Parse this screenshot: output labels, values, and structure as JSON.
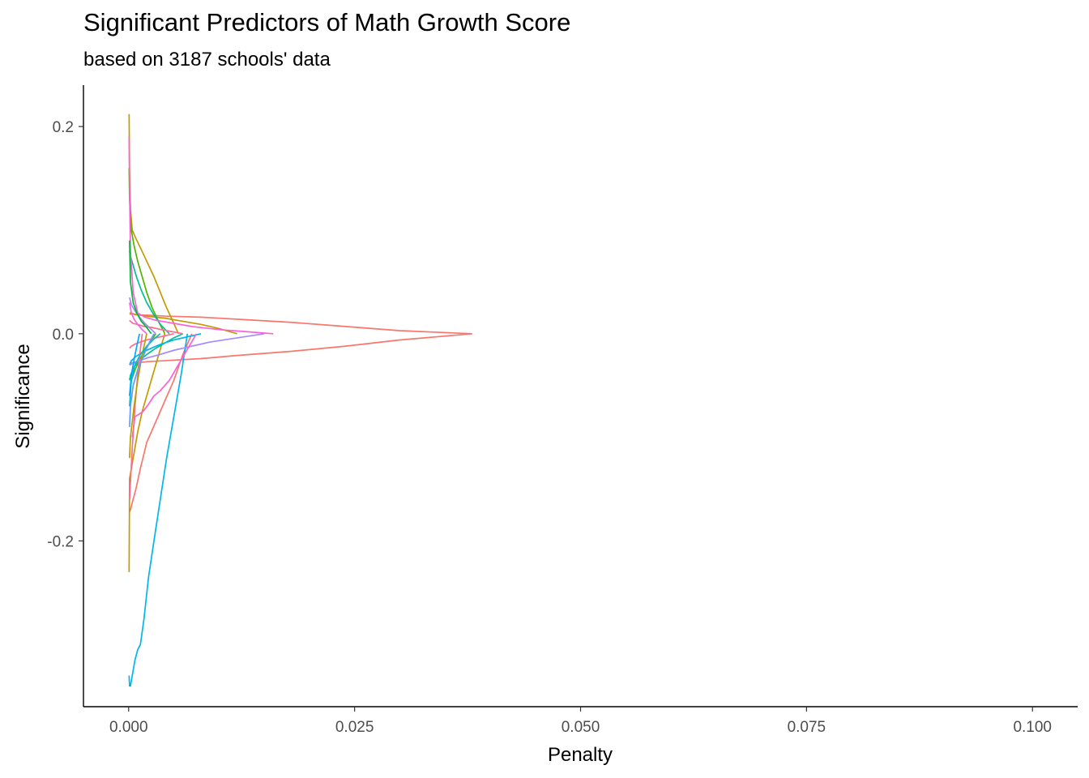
{
  "chart_data": {
    "type": "line",
    "title": "Significant Predictors of Math Growth Score",
    "subtitle": "based on 3187 schools' data",
    "xlabel": "Penalty",
    "ylabel": "Significance",
    "xlim": [
      -0.005,
      0.105
    ],
    "ylim": [
      -0.36,
      0.24
    ],
    "x_ticks": [
      0.0,
      0.025,
      0.05,
      0.075,
      0.1
    ],
    "x_tick_labels": [
      "0.000",
      "0.025",
      "0.050",
      "0.075",
      "0.100"
    ],
    "y_ticks": [
      -0.2,
      0.0,
      0.2
    ],
    "y_tick_labels": [
      "-0.2",
      "0.0",
      "0.2"
    ],
    "grid": false,
    "legend": "none",
    "series": [
      {
        "color": "#F8766D",
        "x": [
          0.038,
          0.03,
          0.024,
          0.018,
          0.012,
          0.008,
          0.004,
          0.002,
          0.001,
          0.0005,
          0.0001
        ],
        "y": [
          0.0,
          0.003,
          0.007,
          0.011,
          0.014,
          0.016,
          0.017,
          0.018,
          0.018,
          0.019,
          0.019
        ]
      },
      {
        "color": "#F8766D",
        "x": [
          0.038,
          0.03,
          0.024,
          0.018,
          0.012,
          0.008,
          0.004,
          0.002,
          0.001,
          0.0005,
          0.0001
        ],
        "y": [
          0.0,
          -0.006,
          -0.012,
          -0.017,
          -0.021,
          -0.024,
          -0.026,
          -0.027,
          -0.028,
          -0.028,
          -0.028
        ]
      },
      {
        "color": "#F8766D",
        "x": [
          0.007,
          0.006,
          0.005,
          0.004,
          0.003,
          0.002,
          0.0013,
          0.0008,
          0.0004,
          0.0002,
          0.0001
        ],
        "y": [
          0.0,
          -0.02,
          -0.045,
          -0.065,
          -0.085,
          -0.105,
          -0.13,
          -0.15,
          -0.163,
          -0.17,
          -0.172
        ]
      },
      {
        "color": "#C49A00",
        "x": [
          0.012,
          0.01,
          0.008,
          0.006,
          0.004,
          0.003,
          0.002,
          0.0012,
          0.0006,
          0.0002,
          0.0001
        ],
        "y": [
          0.0,
          0.005,
          0.009,
          0.012,
          0.015,
          0.016,
          0.017,
          0.018,
          0.019,
          0.02,
          0.02
        ]
      },
      {
        "color": "#C49A00",
        "x": [
          0.0055,
          0.005,
          0.0042,
          0.0035,
          0.0028,
          0.002,
          0.0013,
          0.0008,
          0.0004,
          0.0002,
          0.0001,
          5e-05
        ],
        "y": [
          0.0,
          0.01,
          0.025,
          0.04,
          0.055,
          0.07,
          0.083,
          0.092,
          0.1,
          0.12,
          0.16,
          0.212
        ]
      },
      {
        "color": "#C49A00",
        "x": [
          0.004,
          0.0035,
          0.003,
          0.0025,
          0.002,
          0.0015,
          0.001,
          0.0006,
          0.0003,
          0.0001,
          5e-05
        ],
        "y": [
          0.0,
          -0.015,
          -0.03,
          -0.045,
          -0.06,
          -0.075,
          -0.095,
          -0.115,
          -0.13,
          -0.14,
          -0.23
        ]
      },
      {
        "color": "#53B400",
        "x": [
          0.004,
          0.0033,
          0.0026,
          0.002,
          0.0015,
          0.001,
          0.0006,
          0.0003,
          0.0001,
          5e-05
        ],
        "y": [
          0.0,
          0.012,
          0.025,
          0.04,
          0.055,
          0.07,
          0.085,
          0.1,
          0.13,
          0.16
        ]
      },
      {
        "color": "#53B400",
        "x": [
          0.003,
          0.0024,
          0.0018,
          0.0012,
          0.0007,
          0.0003,
          0.0001
        ],
        "y": [
          0.0,
          -0.008,
          -0.016,
          -0.025,
          -0.035,
          -0.045,
          -0.06
        ]
      },
      {
        "color": "#00C094",
        "x": [
          0.0045,
          0.0036,
          0.0028,
          0.002,
          0.0014,
          0.0009,
          0.0005,
          0.0002,
          0.0001
        ],
        "y": [
          0.0,
          0.008,
          0.018,
          0.03,
          0.042,
          0.054,
          0.066,
          0.075,
          0.08
        ]
      },
      {
        "color": "#00C094",
        "x": [
          0.006,
          0.005,
          0.004,
          0.003,
          0.002,
          0.0012,
          0.0006,
          0.0002,
          0.0001
        ],
        "y": [
          0.0,
          -0.004,
          -0.009,
          -0.014,
          -0.02,
          -0.026,
          -0.032,
          -0.04,
          -0.045
        ]
      },
      {
        "color": "#00B6EB",
        "x": [
          0.0065,
          0.0058,
          0.005,
          0.0042,
          0.0035,
          0.0028,
          0.0022,
          0.0017,
          0.0013,
          0.001,
          0.0007,
          0.0004,
          0.0002,
          0.0001,
          5e-05
        ],
        "y": [
          0.0,
          -0.04,
          -0.08,
          -0.12,
          -0.16,
          -0.2,
          -0.235,
          -0.275,
          -0.3,
          -0.305,
          -0.315,
          -0.33,
          -0.34,
          -0.34,
          -0.33
        ]
      },
      {
        "color": "#00B6EB",
        "x": [
          0.008,
          0.0065,
          0.005,
          0.0036,
          0.0025,
          0.0015,
          0.0008,
          0.0003,
          0.0001
        ],
        "y": [
          0.0,
          -0.003,
          -0.006,
          -0.01,
          -0.014,
          -0.018,
          -0.022,
          -0.026,
          -0.03
        ]
      },
      {
        "color": "#A58AFF",
        "x": [
          0.015,
          0.012,
          0.009,
          0.007,
          0.005,
          0.0035,
          0.0022,
          0.0012,
          0.0005,
          0.0002,
          0.0001
        ],
        "y": [
          0.0,
          -0.004,
          -0.008,
          -0.012,
          -0.016,
          -0.02,
          -0.023,
          -0.026,
          -0.028,
          -0.03,
          -0.03
        ]
      },
      {
        "color": "#A58AFF",
        "x": [
          0.003,
          0.0024,
          0.0018,
          0.0012,
          0.0007,
          0.0003,
          0.0001
        ],
        "y": [
          0.0,
          0.005,
          0.01,
          0.016,
          0.022,
          0.028,
          0.035
        ]
      },
      {
        "color": "#FB61D7",
        "x": [
          0.016,
          0.013,
          0.01,
          0.007,
          0.005,
          0.003,
          0.0018,
          0.001,
          0.0005,
          0.0002,
          0.0001,
          5e-05
        ],
        "y": [
          0.0,
          0.002,
          0.004,
          0.007,
          0.01,
          0.013,
          0.016,
          0.02,
          0.04,
          0.08,
          0.14,
          0.19
        ]
      },
      {
        "color": "#FB61D7",
        "x": [
          0.0075,
          0.0065,
          0.0055,
          0.0045,
          0.0035,
          0.0028,
          0.0022,
          0.0016,
          0.0011,
          0.0007,
          0.0004
        ],
        "y": [
          0.0,
          -0.015,
          -0.03,
          -0.045,
          -0.055,
          -0.06,
          -0.068,
          -0.075,
          -0.078,
          -0.08,
          -0.1
        ]
      },
      {
        "color": "#FF6C91",
        "x": [
          0.006,
          0.0048,
          0.0036,
          0.0026,
          0.0017,
          0.001,
          0.0005,
          0.0002,
          0.0001
        ],
        "y": [
          0.0,
          0.002,
          0.004,
          0.006,
          0.007,
          0.009,
          0.01,
          0.012,
          0.013
        ]
      },
      {
        "color": "#FF6C91",
        "x": [
          0.005,
          0.004,
          0.003,
          0.002,
          0.0013,
          0.0007,
          0.0003,
          0.0001
        ],
        "y": [
          0.0,
          -0.002,
          -0.004,
          -0.006,
          -0.008,
          -0.01,
          -0.012,
          -0.014
        ]
      },
      {
        "color": "#FF6C91",
        "x": [
          0.0015,
          0.0011,
          0.0007,
          0.0004,
          0.0001
        ],
        "y": [
          0.0,
          -0.03,
          -0.07,
          -0.11,
          -0.16
        ]
      },
      {
        "color": "#B79F00",
        "x": [
          0.002,
          0.0015,
          0.001,
          0.0006,
          0.0002,
          0.0001
        ],
        "y": [
          0.0,
          -0.02,
          -0.045,
          -0.07,
          -0.1,
          -0.12
        ]
      },
      {
        "color": "#00BA38",
        "x": [
          0.0025,
          0.002,
          0.0014,
          0.0009,
          0.0005,
          0.0002,
          0.0001
        ],
        "y": [
          0.0,
          0.006,
          0.012,
          0.02,
          0.03,
          0.05,
          0.09
        ]
      },
      {
        "color": "#00BFC4",
        "x": [
          0.0035,
          0.0028,
          0.002,
          0.0013,
          0.0007,
          0.0003,
          0.0001
        ],
        "y": [
          0.0,
          -0.005,
          -0.012,
          -0.02,
          -0.03,
          -0.045,
          -0.07
        ]
      },
      {
        "color": "#619CFF",
        "x": [
          0.0028,
          0.0022,
          0.0016,
          0.001,
          0.0005,
          0.0002,
          0.0001
        ],
        "y": [
          0.0,
          -0.01,
          -0.022,
          -0.035,
          -0.05,
          -0.07,
          -0.09
        ]
      },
      {
        "color": "#F564E3",
        "x": [
          0.002,
          0.0015,
          0.001,
          0.0006,
          0.0003,
          0.0001
        ],
        "y": [
          0.0,
          0.004,
          0.009,
          0.014,
          0.02,
          0.03
        ]
      },
      {
        "color": "#00A9FF",
        "x": [
          0.0012,
          0.0009,
          0.0006,
          0.0003,
          0.0001
        ],
        "y": [
          0.0,
          -0.012,
          -0.025,
          -0.04,
          -0.06
        ]
      }
    ]
  }
}
